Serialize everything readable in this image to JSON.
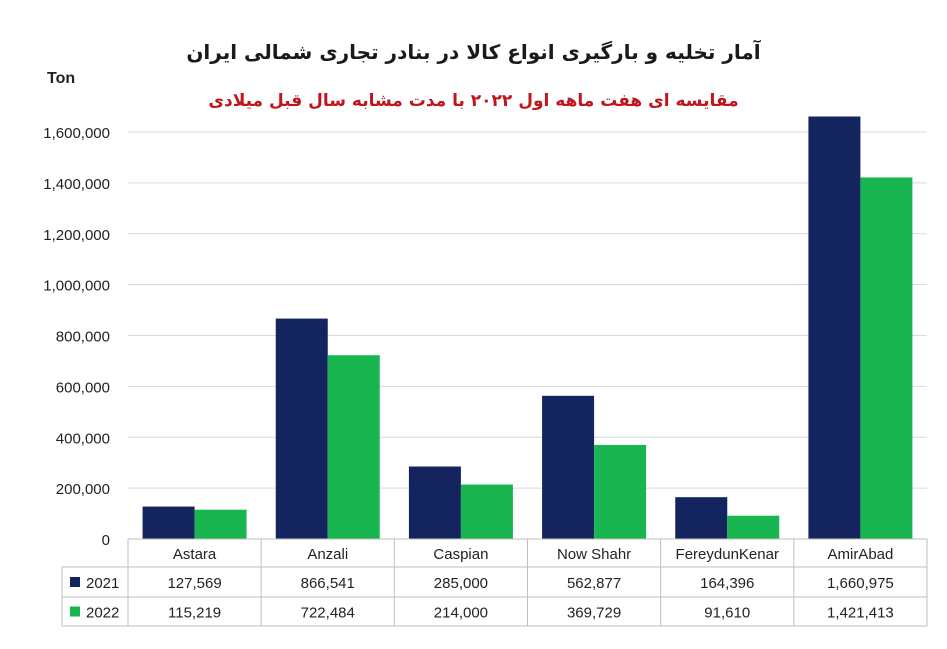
{
  "title": "آمار تخلیه و بارگیری انواع کالا در بنادر تجاری شمالی ایران",
  "subtitle": "مقایسه ای هفت ماهه اول ۲۰۲۲  با مدت مشابه سال قبل میلادی",
  "unit_label": "Ton",
  "colors": {
    "s2021": "#14245e",
    "s2022": "#18b551",
    "grid": "#d9d9d9",
    "axis": "#bfbfbf"
  },
  "chart_data": {
    "type": "bar",
    "title": "آمار تخلیه و بارگیری انواع کالا در بنادر تجاری شمالی ایران",
    "subtitle": "مقایسه ای هفت ماهه اول ۲۰۲۲  با مدت مشابه سال قبل میلادی",
    "ylabel": "Ton",
    "xlabel": "",
    "ylim": [
      0,
      1600000
    ],
    "yticks": [
      "0",
      "200,000",
      "400,000",
      "600,000",
      "800,000",
      "1,000,000",
      "1,200,000",
      "1,400,000",
      "1,600,000"
    ],
    "ytick_values": [
      0,
      200000,
      400000,
      600000,
      800000,
      1000000,
      1200000,
      1400000,
      1600000
    ],
    "grid": true,
    "legend": "data-table",
    "categories": [
      "Astara",
      "Anzali",
      "Caspian",
      "Now Shahr",
      "FereydunKenar",
      "AmirAbad"
    ],
    "series": [
      {
        "name": "2021",
        "values": [
          127569,
          866541,
          285000,
          562877,
          164396,
          1660975
        ],
        "labels": [
          "127,569",
          "866,541",
          "285,000",
          "562,877",
          "164,396",
          "1,660,975"
        ]
      },
      {
        "name": "2022",
        "values": [
          115219,
          722484,
          214000,
          369729,
          91610,
          1421413
        ],
        "labels": [
          "115,219",
          "722,484",
          "214,000",
          "369,729",
          "91,610",
          "1,421,413"
        ]
      }
    ]
  }
}
